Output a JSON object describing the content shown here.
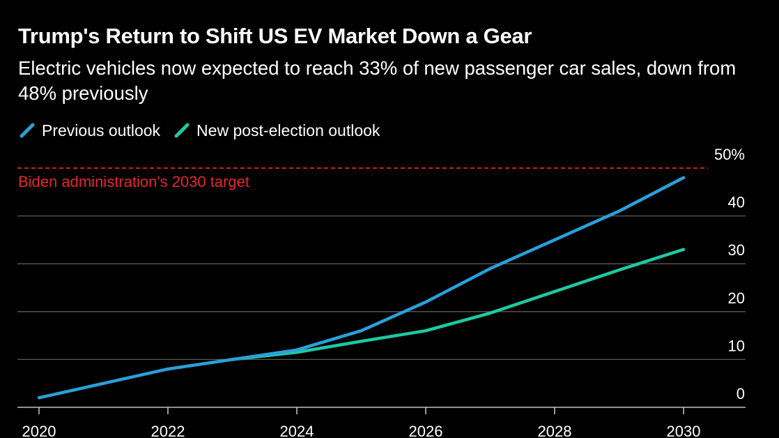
{
  "chart_data": {
    "type": "line",
    "title": "Trump's Return to Shift US EV Market Down a Gear",
    "subtitle": "Electric vehicles now expected to reach 33% of new passenger car sales, down from 48% previously",
    "x": [
      2020,
      2021,
      2022,
      2023,
      2024,
      2025,
      2026,
      2027,
      2028,
      2029,
      2030
    ],
    "xticks": [
      "2020",
      "2022",
      "2024",
      "2026",
      "2028",
      "2030"
    ],
    "ylim": [
      0,
      50
    ],
    "yticks": [
      "0",
      "10",
      "20",
      "30",
      "40",
      "50%"
    ],
    "y_axis_side": "right",
    "grid": true,
    "series": [
      {
        "name": "Previous outlook",
        "color": "#2b9fd9",
        "x": [
          2020,
          2021,
          2022,
          2023,
          2024,
          2025,
          2026,
          2027,
          2028,
          2029,
          2030
        ],
        "values": [
          2,
          5,
          8,
          10,
          12,
          16,
          22,
          29,
          35,
          41,
          48
        ]
      },
      {
        "name": "New post-election outlook",
        "color": "#1fc8a3",
        "x": [
          2023,
          2024,
          2025,
          2026,
          2027,
          2028,
          2029,
          2030
        ],
        "values": [
          10,
          11.5,
          13.8,
          16,
          19.7,
          24.2,
          28.7,
          33
        ]
      }
    ],
    "reference_line": {
      "value": 50,
      "label": "Biden administration's 2030 target",
      "color": "#e8262c",
      "style": "dashed"
    },
    "legend_placement": "top-left"
  }
}
